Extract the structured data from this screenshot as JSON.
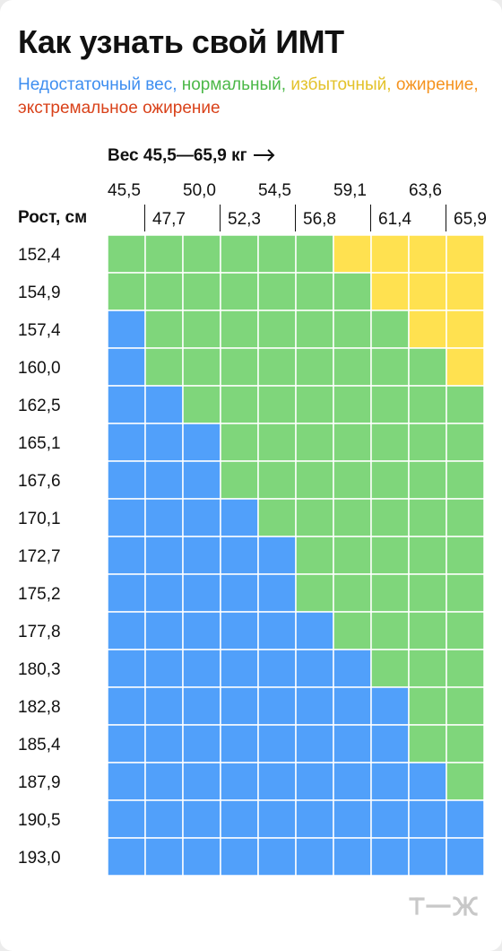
{
  "title": "Как узнать свой ИМТ",
  "legend": {
    "underweight": "Недостаточный вес,",
    "normal": "нормальный,",
    "overweight": "избыточный,",
    "obese": "ожирение,",
    "extreme": "экстремальное ожирение"
  },
  "colors": {
    "underweight": "#51a0fa",
    "normal": "#7fd67b",
    "overweight": "#ffe150",
    "obese": "#f5931f",
    "extreme": "#e0461a",
    "text": "#111111",
    "logo": "#c8c8c8"
  },
  "logo_icon": "tzh-logo",
  "chart_data": {
    "type": "heatmap",
    "x_axis_title": "Вес 45,5—65,9 кг",
    "y_axis_title": "Рост, см",
    "x_tick_labels": [
      "45,5",
      "47,7",
      "50,0",
      "52,3",
      "54,5",
      "56,8",
      "59,1",
      "61,4",
      "63,6",
      "65,9"
    ],
    "y_tick_labels": [
      "152,4",
      "154,9",
      "157,4",
      "160,0",
      "162,5",
      "165,1",
      "167,6",
      "170,1",
      "172,7",
      "175,2",
      "177,8",
      "180,3",
      "182,8",
      "185,4",
      "187,9",
      "190,5",
      "193,0"
    ],
    "categories": [
      "underweight",
      "normal",
      "overweight"
    ],
    "cells": [
      [
        "normal",
        "normal",
        "normal",
        "normal",
        "normal",
        "normal",
        "overweight",
        "overweight",
        "overweight",
        "overweight"
      ],
      [
        "normal",
        "normal",
        "normal",
        "normal",
        "normal",
        "normal",
        "normal",
        "overweight",
        "overweight",
        "overweight"
      ],
      [
        "underweight",
        "normal",
        "normal",
        "normal",
        "normal",
        "normal",
        "normal",
        "normal",
        "overweight",
        "overweight"
      ],
      [
        "underweight",
        "normal",
        "normal",
        "normal",
        "normal",
        "normal",
        "normal",
        "normal",
        "normal",
        "overweight"
      ],
      [
        "underweight",
        "underweight",
        "normal",
        "normal",
        "normal",
        "normal",
        "normal",
        "normal",
        "normal",
        "normal"
      ],
      [
        "underweight",
        "underweight",
        "underweight",
        "normal",
        "normal",
        "normal",
        "normal",
        "normal",
        "normal",
        "normal"
      ],
      [
        "underweight",
        "underweight",
        "underweight",
        "normal",
        "normal",
        "normal",
        "normal",
        "normal",
        "normal",
        "normal"
      ],
      [
        "underweight",
        "underweight",
        "underweight",
        "underweight",
        "normal",
        "normal",
        "normal",
        "normal",
        "normal",
        "normal"
      ],
      [
        "underweight",
        "underweight",
        "underweight",
        "underweight",
        "underweight",
        "normal",
        "normal",
        "normal",
        "normal",
        "normal"
      ],
      [
        "underweight",
        "underweight",
        "underweight",
        "underweight",
        "underweight",
        "normal",
        "normal",
        "normal",
        "normal",
        "normal"
      ],
      [
        "underweight",
        "underweight",
        "underweight",
        "underweight",
        "underweight",
        "underweight",
        "normal",
        "normal",
        "normal",
        "normal"
      ],
      [
        "underweight",
        "underweight",
        "underweight",
        "underweight",
        "underweight",
        "underweight",
        "underweight",
        "normal",
        "normal",
        "normal"
      ],
      [
        "underweight",
        "underweight",
        "underweight",
        "underweight",
        "underweight",
        "underweight",
        "underweight",
        "underweight",
        "normal",
        "normal"
      ],
      [
        "underweight",
        "underweight",
        "underweight",
        "underweight",
        "underweight",
        "underweight",
        "underweight",
        "underweight",
        "normal",
        "normal"
      ],
      [
        "underweight",
        "underweight",
        "underweight",
        "underweight",
        "underweight",
        "underweight",
        "underweight",
        "underweight",
        "underweight",
        "normal"
      ],
      [
        "underweight",
        "underweight",
        "underweight",
        "underweight",
        "underweight",
        "underweight",
        "underweight",
        "underweight",
        "underweight",
        "underweight"
      ],
      [
        "underweight",
        "underweight",
        "underweight",
        "underweight",
        "underweight",
        "underweight",
        "underweight",
        "underweight",
        "underweight",
        "underweight"
      ]
    ]
  }
}
